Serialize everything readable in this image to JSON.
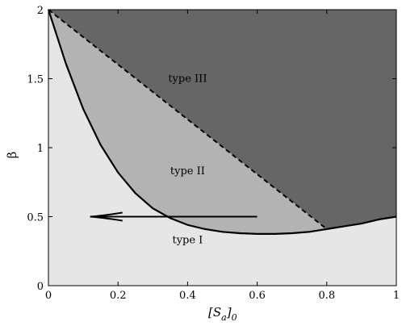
{
  "chart_data": {
    "type": "area",
    "xlim": [
      0,
      1
    ],
    "ylim": [
      0,
      2
    ],
    "x_ticks": [
      0,
      0.2,
      0.4,
      0.6,
      0.8,
      1
    ],
    "x_tick_labels": [
      "0",
      "0.2",
      "0.4",
      "0.6",
      "0.8",
      "1"
    ],
    "y_ticks": [
      0,
      0.5,
      1,
      1.5,
      2
    ],
    "y_tick_labels": [
      "0",
      "0.5",
      "1",
      "1.5",
      "2"
    ],
    "xlabel": "[S",
    "xlabel_sub_a": "a",
    "xlabel_close": "]",
    "xlabel_sub_0": "0",
    "ylabel": "β",
    "colors": {
      "type_I": "#e6e6e6",
      "type_II": "#b3b3b3",
      "type_III": "#666666"
    },
    "regions": [
      {
        "label": "type I",
        "x": 0.4,
        "y": 0.33
      },
      {
        "label": "type II",
        "x": 0.4,
        "y": 0.83
      },
      {
        "label": "type III",
        "x": 0.4,
        "y": 1.5
      }
    ],
    "solid_boundary": {
      "x": [
        0,
        0.05,
        0.1,
        0.15,
        0.2,
        0.25,
        0.3,
        0.35,
        0.4,
        0.45,
        0.5,
        0.55,
        0.6,
        0.65,
        0.7,
        0.75,
        0.8,
        0.85,
        0.9,
        0.95,
        1.0
      ],
      "y": [
        2.0,
        1.61,
        1.28,
        1.02,
        0.82,
        0.67,
        0.56,
        0.49,
        0.44,
        0.41,
        0.39,
        0.38,
        0.375,
        0.375,
        0.38,
        0.39,
        0.41,
        0.43,
        0.45,
        0.48,
        0.5
      ]
    },
    "dashed_boundary": {
      "x": [
        0,
        0.8
      ],
      "y": [
        2.0,
        0.41
      ]
    },
    "arrow": {
      "from": [
        0.6,
        0.5
      ],
      "to": [
        0.12,
        0.5
      ]
    }
  }
}
